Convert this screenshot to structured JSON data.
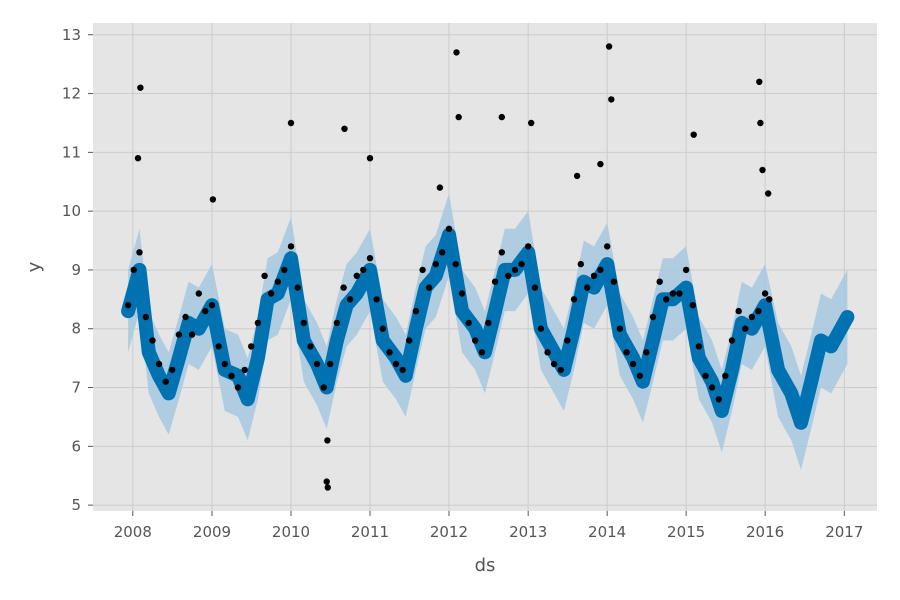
{
  "chart_data": {
    "type": "scatter",
    "xlabel": "ds",
    "ylabel": "y",
    "xlim": [
      "2007-07-01",
      "2017-06-01"
    ],
    "ylim": [
      4.9,
      13.2
    ],
    "x_ticks": [
      "2008",
      "2009",
      "2010",
      "2011",
      "2012",
      "2013",
      "2014",
      "2015",
      "2016",
      "2017"
    ],
    "y_ticks": [
      "5",
      "6",
      "7",
      "8",
      "9",
      "10",
      "11",
      "12",
      "13"
    ],
    "grid": true,
    "colors": {
      "background": "#e5e5e5",
      "grid": "#cccccc",
      "points": "#000000",
      "forecast": "#0072b2",
      "uncertainty": "#a6c8e0"
    },
    "series": [
      {
        "kind": "observed",
        "x": [
          "2007-12-10",
          "2008-01-05",
          "2008-02-01",
          "2008-03-01",
          "2008-04-01",
          "2008-05-01",
          "2008-06-01",
          "2008-07-01",
          "2008-08-01",
          "2008-09-01",
          "2008-10-01",
          "2008-11-01",
          "2008-12-01",
          "2009-01-01",
          "2009-02-01",
          "2009-03-01",
          "2009-04-01",
          "2009-05-01",
          "2009-06-01",
          "2009-07-01",
          "2009-08-01",
          "2009-09-01",
          "2009-10-01",
          "2009-11-01",
          "2009-12-01",
          "2010-01-01",
          "2010-02-01",
          "2010-03-01",
          "2010-04-01",
          "2010-05-01",
          "2010-06-01",
          "2010-07-01",
          "2010-08-01",
          "2010-09-01",
          "2010-10-01",
          "2010-11-01",
          "2010-12-01",
          "2011-01-01",
          "2011-02-01",
          "2011-03-01",
          "2011-04-01",
          "2011-05-01",
          "2011-06-01",
          "2011-07-01",
          "2011-08-01",
          "2011-09-01",
          "2011-10-01",
          "2011-11-01",
          "2011-12-01",
          "2012-01-01",
          "2012-02-01",
          "2012-03-01",
          "2012-04-01",
          "2012-05-01",
          "2012-06-01",
          "2012-07-01",
          "2012-08-01",
          "2012-09-01",
          "2012-10-01",
          "2012-11-01",
          "2012-12-01",
          "2013-01-01",
          "2013-02-01",
          "2013-03-01",
          "2013-04-01",
          "2013-05-01",
          "2013-06-01",
          "2013-07-01",
          "2013-08-01",
          "2013-09-01",
          "2013-10-01",
          "2013-11-01",
          "2013-12-01",
          "2014-01-01",
          "2014-02-01",
          "2014-03-01",
          "2014-04-01",
          "2014-05-01",
          "2014-06-01",
          "2014-07-01",
          "2014-08-01",
          "2014-09-01",
          "2014-10-01",
          "2014-11-01",
          "2014-12-01",
          "2015-01-01",
          "2015-02-01",
          "2015-03-01",
          "2015-04-01",
          "2015-05-01",
          "2015-06-01",
          "2015-07-01",
          "2015-08-01",
          "2015-09-01",
          "2015-10-01",
          "2015-11-01",
          "2015-12-01",
          "2016-01-01",
          "2016-01-20",
          "2008-02-05",
          "2008-01-25",
          "2009-01-05",
          "2010-01-01",
          "2010-06-15",
          "2010-06-20",
          "2010-06-18",
          "2010-09-05",
          "2011-01-01",
          "2011-11-20",
          "2012-02-05",
          "2012-02-15",
          "2012-09-01",
          "2013-01-15",
          "2013-08-15",
          "2013-12-01",
          "2014-01-10",
          "2014-01-20",
          "2015-02-05",
          "2015-12-10",
          "2015-12-05",
          "2015-12-20",
          "2016-01-15"
        ],
        "y": [
          8.4,
          9.0,
          9.3,
          8.2,
          7.8,
          7.4,
          7.1,
          7.3,
          7.9,
          8.2,
          7.9,
          8.6,
          8.3,
          8.4,
          7.7,
          7.4,
          7.2,
          7.0,
          7.3,
          7.7,
          8.1,
          8.9,
          8.6,
          8.8,
          9.0,
          9.4,
          8.7,
          8.1,
          7.7,
          7.4,
          7.0,
          7.4,
          8.1,
          8.7,
          8.5,
          8.9,
          9.0,
          9.2,
          8.5,
          8.0,
          7.6,
          7.4,
          7.3,
          7.8,
          8.3,
          9.0,
          8.7,
          9.1,
          9.3,
          9.7,
          9.1,
          8.6,
          8.1,
          7.8,
          7.6,
          8.1,
          8.8,
          9.3,
          8.9,
          9.0,
          9.1,
          9.4,
          8.7,
          8.0,
          7.6,
          7.4,
          7.3,
          7.8,
          8.5,
          9.1,
          8.7,
          8.9,
          9.0,
          9.4,
          8.8,
          8.0,
          7.6,
          7.4,
          7.2,
          7.6,
          8.2,
          8.8,
          8.5,
          8.6,
          8.6,
          9.0,
          8.4,
          7.7,
          7.2,
          7.0,
          6.8,
          7.2,
          7.8,
          8.3,
          8.0,
          8.2,
          8.3,
          8.6,
          8.5,
          12.1,
          10.9,
          10.2,
          11.5,
          5.4,
          5.3,
          6.1,
          11.4,
          10.9,
          10.4,
          12.7,
          11.6,
          11.6,
          11.5,
          10.6,
          10.8,
          12.8,
          11.9,
          11.3,
          11.5,
          12.2,
          10.7,
          10.3
        ]
      },
      {
        "kind": "forecast",
        "x": [
          "2007-12-10",
          "2008-02-01",
          "2008-03-15",
          "2008-05-01",
          "2008-06-15",
          "2008-08-01",
          "2008-09-15",
          "2008-11-01",
          "2009-01-01",
          "2009-03-01",
          "2009-05-01",
          "2009-06-15",
          "2009-08-01",
          "2009-09-15",
          "2009-11-01",
          "2010-01-01",
          "2010-03-01",
          "2010-05-01",
          "2010-06-15",
          "2010-08-01",
          "2010-09-15",
          "2010-11-01",
          "2011-01-01",
          "2011-03-01",
          "2011-05-01",
          "2011-06-15",
          "2011-08-01",
          "2011-09-15",
          "2011-11-01",
          "2012-01-01",
          "2012-03-01",
          "2012-05-01",
          "2012-06-15",
          "2012-08-01",
          "2012-09-15",
          "2012-11-01",
          "2013-01-01",
          "2013-03-01",
          "2013-05-01",
          "2013-06-15",
          "2013-08-01",
          "2013-09-15",
          "2013-11-01",
          "2014-01-01",
          "2014-03-01",
          "2014-05-01",
          "2014-06-15",
          "2014-08-01",
          "2014-09-15",
          "2014-11-01",
          "2015-01-01",
          "2015-03-01",
          "2015-05-01",
          "2015-06-15",
          "2015-08-01",
          "2015-09-15",
          "2015-11-01",
          "2016-01-01",
          "2016-03-01",
          "2016-05-01",
          "2016-06-15",
          "2016-08-01",
          "2016-09-15",
          "2016-11-01",
          "2017-01-15"
        ],
        "y": [
          8.3,
          9.0,
          7.6,
          7.2,
          6.9,
          7.5,
          8.1,
          8.0,
          8.4,
          7.3,
          7.2,
          6.8,
          7.5,
          8.5,
          8.6,
          9.2,
          7.8,
          7.4,
          7.0,
          7.8,
          8.4,
          8.6,
          9.0,
          7.8,
          7.5,
          7.2,
          8.0,
          8.7,
          8.9,
          9.6,
          8.3,
          8.0,
          7.6,
          8.3,
          9.0,
          9.0,
          9.3,
          8.0,
          7.6,
          7.3,
          8.0,
          8.8,
          8.7,
          9.1,
          7.9,
          7.5,
          7.1,
          7.8,
          8.5,
          8.5,
          8.7,
          7.5,
          7.1,
          6.6,
          7.3,
          8.1,
          8.0,
          8.4,
          7.3,
          6.9,
          6.4,
          7.1,
          7.8,
          7.7,
          8.2
        ],
        "lower": [
          7.6,
          8.3,
          6.9,
          6.5,
          6.2,
          6.8,
          7.4,
          7.3,
          7.7,
          6.6,
          6.5,
          6.1,
          6.8,
          7.8,
          7.9,
          8.5,
          7.1,
          6.7,
          6.3,
          7.1,
          7.7,
          7.9,
          8.3,
          7.1,
          6.8,
          6.5,
          7.3,
          8.0,
          8.2,
          8.9,
          7.6,
          7.3,
          6.9,
          7.6,
          8.3,
          8.3,
          8.6,
          7.3,
          6.9,
          6.6,
          7.3,
          8.1,
          8.0,
          8.4,
          7.2,
          6.8,
          6.4,
          7.1,
          7.8,
          7.8,
          8.0,
          6.8,
          6.4,
          5.9,
          6.6,
          7.4,
          7.3,
          7.7,
          6.5,
          6.1,
          5.6,
          6.3,
          7.0,
          6.9,
          7.4
        ],
        "upper": [
          9.0,
          9.7,
          8.3,
          7.9,
          7.6,
          8.2,
          8.8,
          8.7,
          9.1,
          8.0,
          7.9,
          7.5,
          8.2,
          9.2,
          9.3,
          9.9,
          8.5,
          8.1,
          7.7,
          8.5,
          9.1,
          9.3,
          9.7,
          8.5,
          8.2,
          7.9,
          8.7,
          9.4,
          9.6,
          10.3,
          9.0,
          8.7,
          8.3,
          9.0,
          9.7,
          9.7,
          10.0,
          8.7,
          8.3,
          8.0,
          8.7,
          9.5,
          9.4,
          9.8,
          8.6,
          8.2,
          7.8,
          8.5,
          9.2,
          9.2,
          9.4,
          8.2,
          7.8,
          7.3,
          8.0,
          8.8,
          8.7,
          9.1,
          8.1,
          7.7,
          7.2,
          7.9,
          8.6,
          8.5,
          9.0
        ]
      }
    ]
  }
}
